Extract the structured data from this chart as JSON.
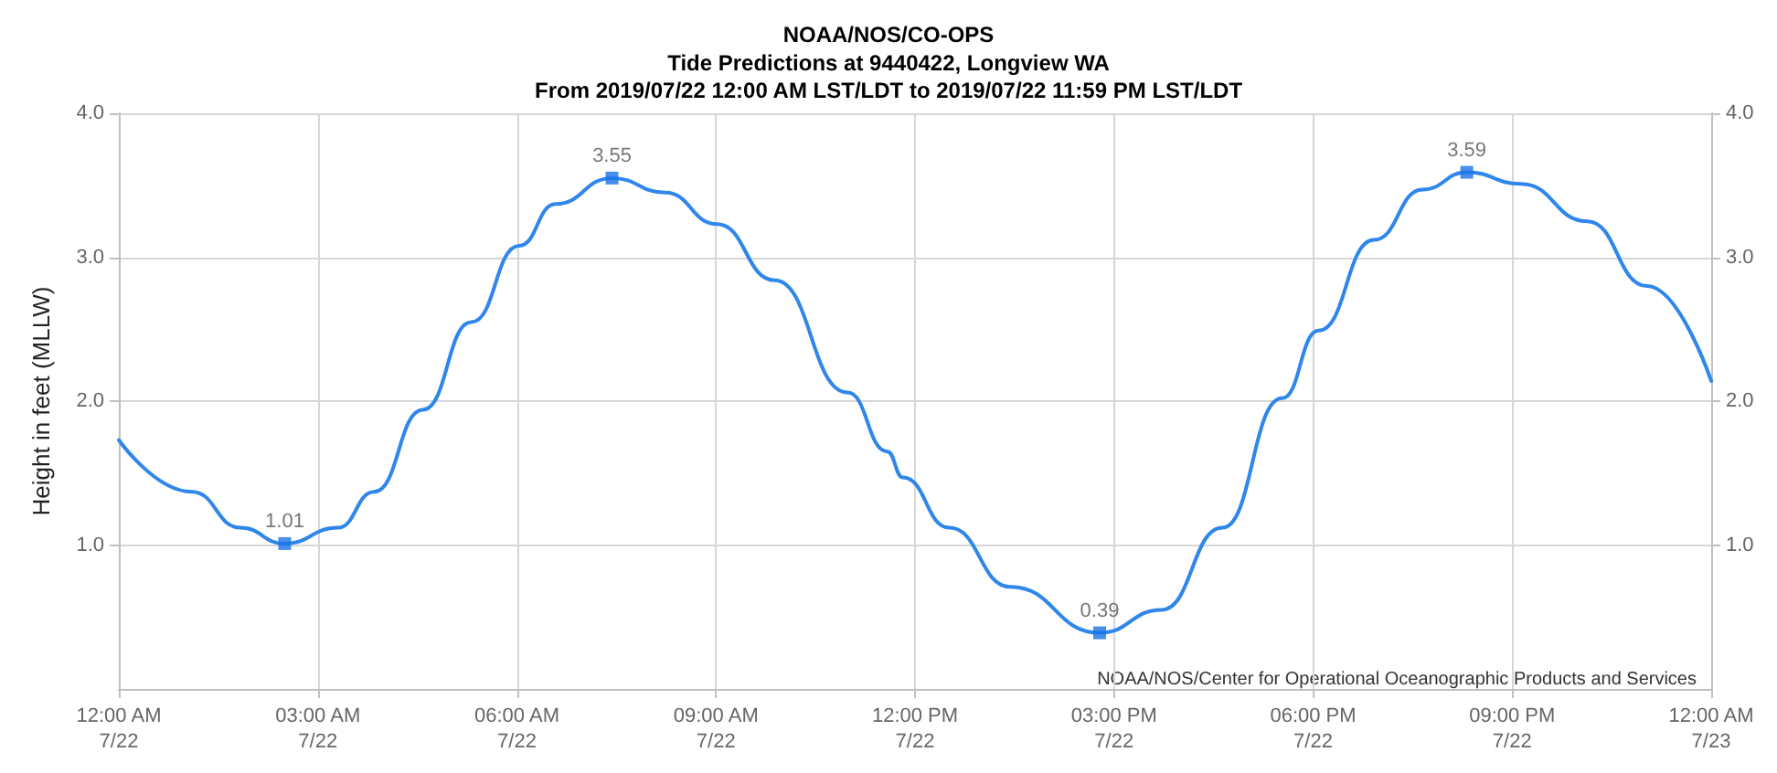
{
  "chart_data": {
    "type": "line",
    "title": "NOAA/NOS/CO-OPS",
    "subtitle": "Tide Predictions at 9440422, Longview WA\nFrom 2019/07/22 12:00 AM LST/LDT to 2019/07/22 11:59 PM LST/LDT",
    "ylabel": "Height in feet (MLLW)",
    "annotations": [
      "NOAA/NOS/Center for Operational Oceanographic Products and Services"
    ],
    "series": [
      {
        "type": "line",
        "color": "#2f86eb",
        "marker": "none",
        "x": [
          "2019-07-22T00:00",
          "2019-07-22T01:06",
          "2019-07-22T01:50",
          "2019-07-22T02:30",
          "2019-07-22T03:18",
          "2019-07-22T03:51",
          "2019-07-22T04:35",
          "2019-07-22T05:19",
          "2019-07-22T06:02",
          "2019-07-22T06:35",
          "2019-07-22T07:26",
          "2019-07-22T08:14",
          "2019-07-22T09:01",
          "2019-07-22T09:53",
          "2019-07-22T10:59",
          "2019-07-22T11:35",
          "2019-07-22T11:49",
          "2019-07-22T12:31",
          "2019-07-22T13:26",
          "2019-07-22T14:47",
          "2019-07-22T15:43",
          "2019-07-22T16:38",
          "2019-07-22T17:32",
          "2019-07-22T18:05",
          "2019-07-22T18:55",
          "2019-07-22T19:39",
          "2019-07-22T20:19",
          "2019-07-22T21:08",
          "2019-07-22T22:08",
          "2019-07-22T23:02",
          "2019-07-23T00:00"
        ],
        "values": [
          1.73,
          1.37,
          1.12,
          1.01,
          1.12,
          1.37,
          1.94,
          2.55,
          3.08,
          3.37,
          3.55,
          3.45,
          3.23,
          2.84,
          2.06,
          1.65,
          1.47,
          1.12,
          0.71,
          0.39,
          0.55,
          1.12,
          2.02,
          2.49,
          3.12,
          3.47,
          3.59,
          3.51,
          3.25,
          2.8,
          2.14
        ]
      },
      {
        "type": "scatter",
        "color": "#1a73e8",
        "marker": "square",
        "x": [
          "2019-07-22T02:30",
          "2019-07-22T07:26",
          "2019-07-22T14:47",
          "2019-07-22T20:19"
        ],
        "values": [
          1.01,
          3.55,
          0.39,
          3.59
        ],
        "value_labels": [
          "1.01",
          "3.55",
          "0.39",
          "3.59"
        ]
      }
    ],
    "xlim": [
      "2019-07-22T00:00",
      "2019-07-23T00:00"
    ],
    "xticks": [
      {
        "value": "2019-07-22T00:00",
        "label": "12:00 AM\n7/22"
      },
      {
        "value": "2019-07-22T03:00",
        "label": "03:00 AM\n7/22"
      },
      {
        "value": "2019-07-22T06:00",
        "label": "06:00 AM\n7/22"
      },
      {
        "value": "2019-07-22T09:00",
        "label": "09:00 AM\n7/22"
      },
      {
        "value": "2019-07-22T12:00",
        "label": "12:00 PM\n7/22"
      },
      {
        "value": "2019-07-22T15:00",
        "label": "03:00 PM\n7/22"
      },
      {
        "value": "2019-07-22T18:00",
        "label": "06:00 PM\n7/22"
      },
      {
        "value": "2019-07-22T21:00",
        "label": "09:00 PM\n7/22"
      },
      {
        "value": "2019-07-23T00:00",
        "label": "12:00 AM\n7/23"
      }
    ],
    "ylim": [
      0,
      4
    ],
    "yticks": [
      {
        "value": 1,
        "label": "1.0"
      },
      {
        "value": 2,
        "label": "2.0"
      },
      {
        "value": 3,
        "label": "3.0"
      },
      {
        "value": 4,
        "label": "4.0"
      }
    ],
    "y2lim": [
      0,
      4
    ],
    "y2ticks": [
      {
        "value": 1,
        "label": "1.0"
      },
      {
        "value": 2,
        "label": "2.0"
      },
      {
        "value": 3,
        "label": "3.0"
      },
      {
        "value": 4,
        "label": "4.0"
      }
    ],
    "grid": true
  }
}
